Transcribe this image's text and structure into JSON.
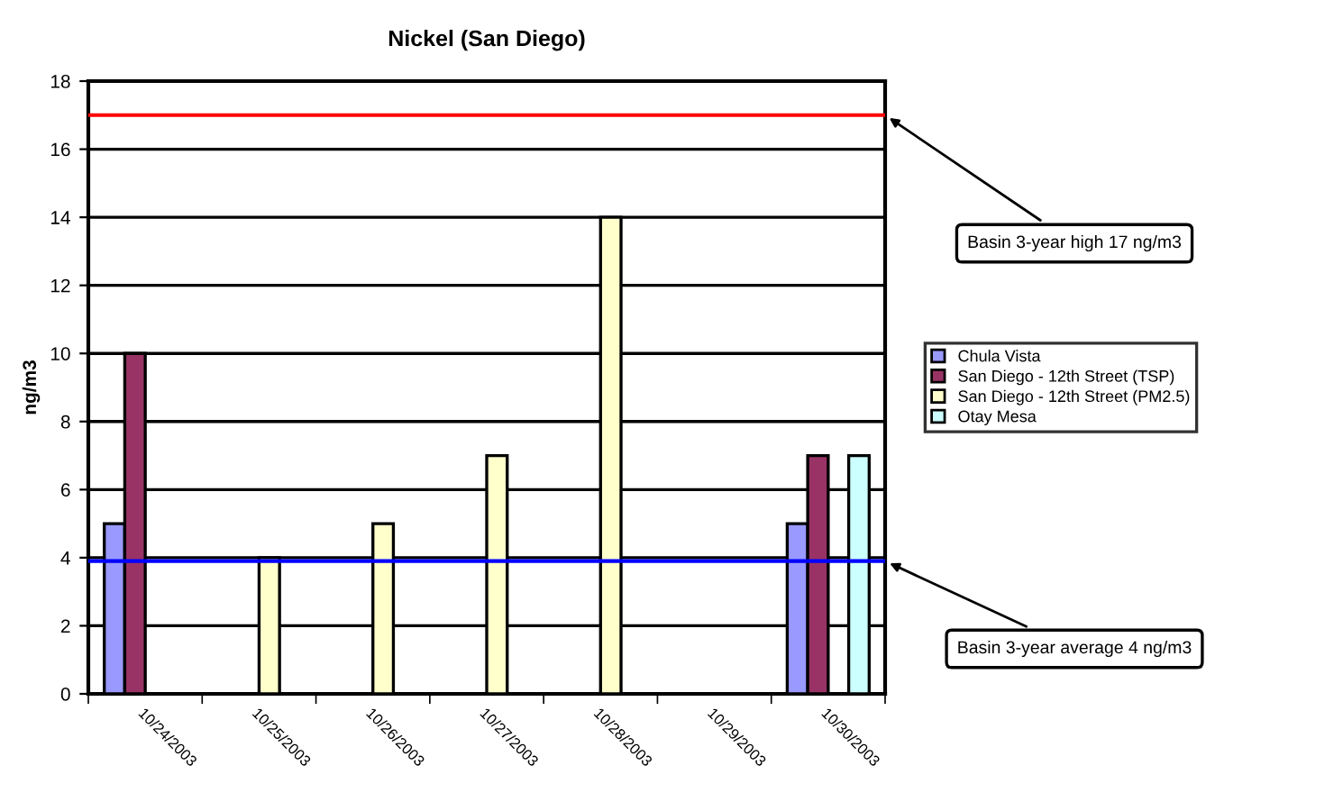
{
  "chart_data": {
    "type": "bar",
    "title": "Nickel (San Diego)",
    "ylabel": "ng/m3",
    "categories": [
      "10/24/2003",
      "10/25/2003",
      "10/26/2003",
      "10/27/2003",
      "10/28/2003",
      "10/29/2003",
      "10/30/2003"
    ],
    "series": [
      {
        "name": "Chula Vista",
        "color": "#9999ff",
        "values": [
          5,
          null,
          null,
          null,
          null,
          null,
          5
        ]
      },
      {
        "name": "San Diego - 12th Street (TSP)",
        "color": "#993366",
        "values": [
          10,
          null,
          null,
          null,
          null,
          null,
          7
        ]
      },
      {
        "name": "San Diego - 12th Street (PM2.5)",
        "color": "#ffffcc",
        "values": [
          null,
          4,
          5,
          7,
          14,
          null,
          null
        ]
      },
      {
        "name": "Otay Mesa",
        "color": "#ccffff",
        "values": [
          null,
          null,
          null,
          null,
          null,
          null,
          7
        ]
      }
    ],
    "ylim": [
      0,
      18
    ],
    "yticks": [
      0,
      2,
      4,
      6,
      8,
      10,
      12,
      14,
      16,
      18
    ],
    "grid": "y",
    "legend": "right",
    "ref_lines": [
      {
        "axis": "y",
        "value": 17,
        "label": "Basin 3-year high 17 ng/m3",
        "color": "#ff0000"
      },
      {
        "axis": "y",
        "value": 3.9,
        "label": "Basin 3-year average 4 ng/m3",
        "color": "#0000ff"
      }
    ]
  }
}
